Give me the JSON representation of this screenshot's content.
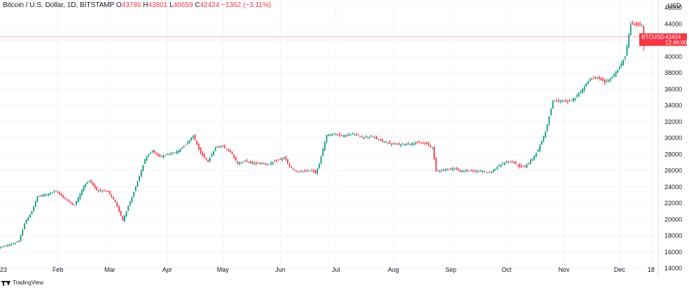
{
  "legend": {
    "symbol": "Bitcoin / U.S. Dollar, 1D, BITSTAMP",
    "o_label": "O",
    "o_value": "43786",
    "h_label": "H",
    "h_value": "43801",
    "l_label": "L",
    "l_value": "40659",
    "c_label": "C",
    "c_value": "42424",
    "change": "−1362 (−3.11%)"
  },
  "currency": "USD",
  "price_tag": {
    "symbol": "BTCUSD",
    "price": "42424",
    "countdown": "12:46:00"
  },
  "branding": "TradingView",
  "colors": {
    "up": "#089981",
    "down": "#f23645",
    "grid": "#f0f3fa",
    "text": "#131722",
    "price_line": "#f23645"
  },
  "chart_data": {
    "type": "candlestick",
    "y_axis": {
      "range": [
        14000,
        46000
      ],
      "ticks": [
        "46000",
        "44000",
        "42000",
        "40000",
        "38000",
        "36000",
        "34000",
        "32000",
        "30000",
        "28000",
        "26000",
        "24000",
        "22000",
        "20000",
        "18000",
        "16000",
        "14000"
      ]
    },
    "x_axis": {
      "range": [
        0,
        355
      ],
      "ticks": [
        {
          "label": "23",
          "day": -1
        },
        {
          "label": "Feb",
          "day": 31
        },
        {
          "label": "Mar",
          "day": 59
        },
        {
          "label": "Apr",
          "day": 90
        },
        {
          "label": "May",
          "day": 120
        },
        {
          "label": "Jun",
          "day": 151
        },
        {
          "label": "Jul",
          "day": 181
        },
        {
          "label": "Aug",
          "day": 212
        },
        {
          "label": "Sep",
          "day": 243
        },
        {
          "label": "Oct",
          "day": 273
        },
        {
          "label": "Nov",
          "day": 304
        },
        {
          "label": "Dec",
          "day": 334
        },
        {
          "label": "18",
          "day": 351
        }
      ]
    },
    "last_price": 42424,
    "anchors": [
      [
        0,
        16600
      ],
      [
        5,
        16900
      ],
      [
        10,
        17300
      ],
      [
        13,
        19500
      ],
      [
        17,
        21000
      ],
      [
        20,
        22800
      ],
      [
        25,
        23100
      ],
      [
        30,
        23500
      ],
      [
        35,
        22500
      ],
      [
        40,
        21700
      ],
      [
        45,
        24100
      ],
      [
        48,
        24800
      ],
      [
        52,
        23600
      ],
      [
        58,
        23400
      ],
      [
        62,
        22100
      ],
      [
        66,
        19900
      ],
      [
        70,
        22200
      ],
      [
        74,
        24600
      ],
      [
        78,
        27400
      ],
      [
        82,
        28400
      ],
      [
        86,
        27700
      ],
      [
        90,
        28000
      ],
      [
        95,
        28300
      ],
      [
        100,
        29200
      ],
      [
        104,
        30300
      ],
      [
        108,
        28100
      ],
      [
        112,
        27200
      ],
      [
        116,
        28800
      ],
      [
        120,
        29000
      ],
      [
        125,
        28100
      ],
      [
        128,
        26800
      ],
      [
        132,
        27200
      ],
      [
        136,
        26900
      ],
      [
        140,
        26900
      ],
      [
        145,
        26800
      ],
      [
        150,
        27300
      ],
      [
        153,
        27600
      ],
      [
        156,
        26500
      ],
      [
        160,
        25800
      ],
      [
        164,
        25900
      ],
      [
        168,
        26000
      ],
      [
        170,
        25700
      ],
      [
        172,
        26800
      ],
      [
        176,
        30400
      ],
      [
        180,
        30500
      ],
      [
        185,
        30300
      ],
      [
        190,
        30500
      ],
      [
        195,
        30100
      ],
      [
        200,
        30200
      ],
      [
        205,
        29700
      ],
      [
        210,
        29300
      ],
      [
        215,
        29200
      ],
      [
        220,
        29300
      ],
      [
        225,
        29400
      ],
      [
        230,
        29300
      ],
      [
        233,
        28800
      ],
      [
        235,
        26000
      ],
      [
        240,
        26100
      ],
      [
        245,
        26300
      ],
      [
        248,
        25900
      ],
      [
        252,
        26000
      ],
      [
        256,
        25900
      ],
      [
        260,
        26000
      ],
      [
        264,
        25700
      ],
      [
        268,
        26400
      ],
      [
        272,
        27000
      ],
      [
        276,
        27100
      ],
      [
        280,
        26500
      ],
      [
        283,
        26500
      ],
      [
        286,
        27200
      ],
      [
        290,
        28500
      ],
      [
        294,
        30800
      ],
      [
        298,
        34500
      ],
      [
        302,
        34600
      ],
      [
        306,
        34400
      ],
      [
        310,
        35000
      ],
      [
        314,
        36000
      ],
      [
        318,
        37300
      ],
      [
        322,
        37400
      ],
      [
        326,
        36800
      ],
      [
        330,
        37500
      ],
      [
        334,
        38700
      ],
      [
        337,
        40000
      ],
      [
        340,
        44000
      ],
      [
        344,
        43900
      ],
      [
        346,
        43800
      ],
      [
        347,
        42424
      ]
    ]
  }
}
